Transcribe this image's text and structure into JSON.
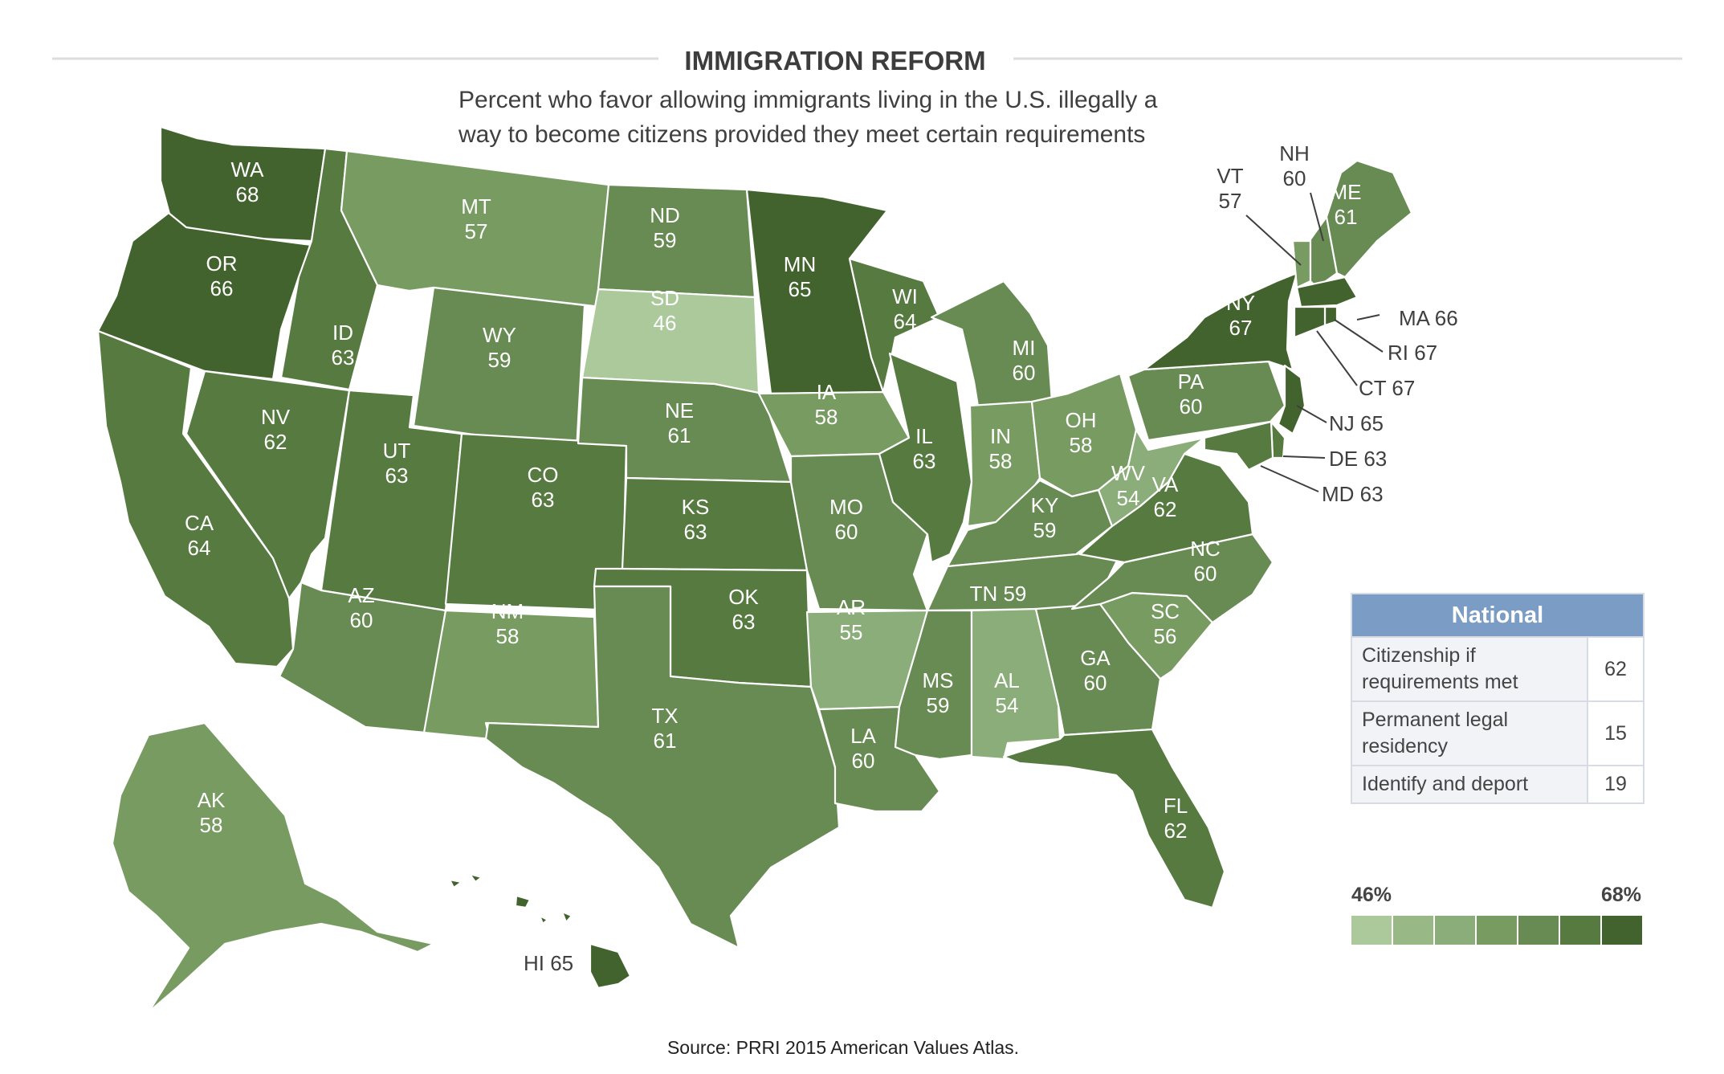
{
  "header": {
    "title": "IMMIGRATION REFORM",
    "subtitle_line1": "Percent who favor allowing immigrants living in the U.S. illegally a",
    "subtitle_line2": "way to become citizens provided they meet certain requirements"
  },
  "source": "Source: PRRI 2015 American Values Atlas.",
  "colors": {
    "scale": [
      "#abc99b",
      "#98b986",
      "#8aad79",
      "#789b62",
      "#678b52",
      "#567a40",
      "#43632e"
    ],
    "border": "#ffffff",
    "table_header": "#7b9cc5",
    "table_row": "#f1f3f7"
  },
  "states": [
    {
      "abbr": "WA",
      "value": 68
    },
    {
      "abbr": "OR",
      "value": 66
    },
    {
      "abbr": "CA",
      "value": 64
    },
    {
      "abbr": "ID",
      "value": 63
    },
    {
      "abbr": "NV",
      "value": 62
    },
    {
      "abbr": "MT",
      "value": 57
    },
    {
      "abbr": "WY",
      "value": 59
    },
    {
      "abbr": "UT",
      "value": 63
    },
    {
      "abbr": "AZ",
      "value": 60
    },
    {
      "abbr": "CO",
      "value": 63
    },
    {
      "abbr": "NM",
      "value": 58
    },
    {
      "abbr": "ND",
      "value": 59
    },
    {
      "abbr": "SD",
      "value": 46
    },
    {
      "abbr": "NE",
      "value": 61
    },
    {
      "abbr": "KS",
      "value": 63
    },
    {
      "abbr": "OK",
      "value": 63
    },
    {
      "abbr": "TX",
      "value": 61
    },
    {
      "abbr": "MN",
      "value": 65
    },
    {
      "abbr": "IA",
      "value": 58
    },
    {
      "abbr": "MO",
      "value": 60
    },
    {
      "abbr": "AR",
      "value": 55
    },
    {
      "abbr": "LA",
      "value": 60
    },
    {
      "abbr": "WI",
      "value": 64
    },
    {
      "abbr": "IL",
      "value": 63
    },
    {
      "abbr": "MI",
      "value": 60
    },
    {
      "abbr": "IN",
      "value": 58
    },
    {
      "abbr": "OH",
      "value": 58
    },
    {
      "abbr": "KY",
      "value": 59
    },
    {
      "abbr": "TN",
      "value": 59
    },
    {
      "abbr": "MS",
      "value": 59
    },
    {
      "abbr": "AL",
      "value": 54
    },
    {
      "abbr": "GA",
      "value": 60
    },
    {
      "abbr": "FL",
      "value": 62
    },
    {
      "abbr": "SC",
      "value": 56
    },
    {
      "abbr": "NC",
      "value": 60
    },
    {
      "abbr": "VA",
      "value": 62
    },
    {
      "abbr": "WV",
      "value": 54
    },
    {
      "abbr": "PA",
      "value": 60
    },
    {
      "abbr": "NY",
      "value": 67
    },
    {
      "abbr": "VT",
      "value": 57
    },
    {
      "abbr": "NH",
      "value": 60
    },
    {
      "abbr": "ME",
      "value": 61
    },
    {
      "abbr": "MA",
      "value": 66
    },
    {
      "abbr": "RI",
      "value": 67
    },
    {
      "abbr": "CT",
      "value": 67
    },
    {
      "abbr": "NJ",
      "value": 65
    },
    {
      "abbr": "DE",
      "value": 63
    },
    {
      "abbr": "MD",
      "value": 63
    },
    {
      "abbr": "AK",
      "value": 58
    },
    {
      "abbr": "HI",
      "value": 65
    }
  ],
  "national": {
    "header": "National",
    "rows": [
      {
        "label_line1": "Citizenship if",
        "label_line2": "requirements met",
        "value": "62"
      },
      {
        "label_line1": "Permanent legal",
        "label_line2": "residency",
        "value": "15"
      },
      {
        "label_line1": "Identify and deport",
        "label_line2": "",
        "value": "19"
      }
    ]
  },
  "legend": {
    "min_label": "46%",
    "max_label": "68%",
    "min": 46,
    "max": 68,
    "steps": 7
  }
}
